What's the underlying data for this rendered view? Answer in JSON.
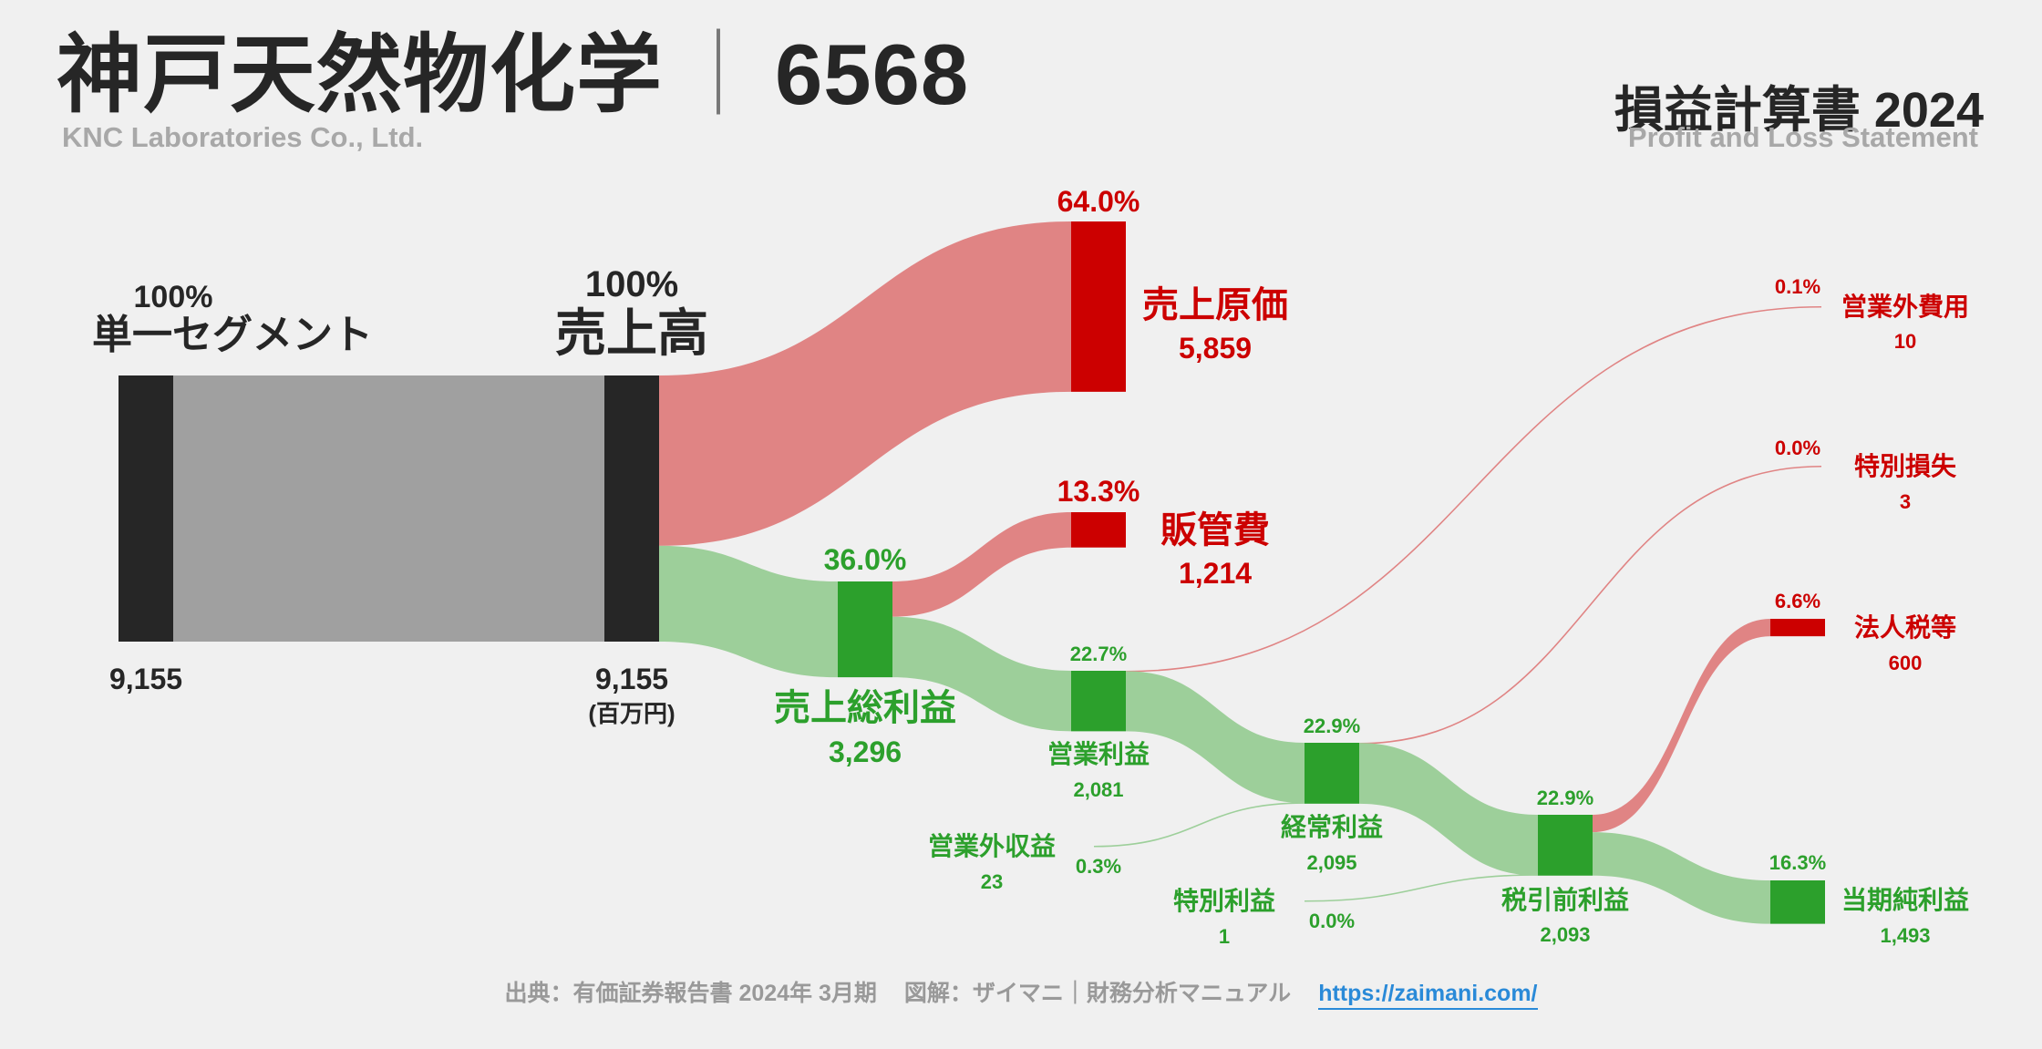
{
  "header": {
    "company": "神戸天然物化学",
    "separator": "｜",
    "code": "6568",
    "company_en": "KNC Laboratories Co., Ltd.",
    "statement": "損益計算書 2024",
    "statement_en": "Profit and Loss Statement"
  },
  "footer": {
    "source": "出典：有価証券報告書 2024年 3月期",
    "credit": "図解：ザイマニ｜財務分析マニュアル",
    "url": "https://zaimani.com/"
  },
  "colors": {
    "dark": "#262626",
    "gray_band": "#a0a0a0",
    "red": "#cc0000",
    "red_band": "#e08484",
    "green": "#2ca02c",
    "green_band": "#9dcf9a",
    "background": "#f0f0f0"
  },
  "chart_data": {
    "type": "sankey",
    "unit": "(百万円)",
    "nodes": [
      {
        "id": "segment",
        "label": "単一セグメント",
        "value": 9155,
        "value_text": "9,155",
        "pct": "100%",
        "kind": "dark"
      },
      {
        "id": "revenue",
        "label": "売上高",
        "value": 9155,
        "value_text": "9,155",
        "pct": "100%",
        "kind": "dark"
      },
      {
        "id": "cogs",
        "label": "売上原価",
        "value": 5859,
        "value_text": "5,859",
        "pct": "64.0%",
        "kind": "cost"
      },
      {
        "id": "gross",
        "label": "売上総利益",
        "value": 3296,
        "value_text": "3,296",
        "pct": "36.0%",
        "kind": "profit"
      },
      {
        "id": "sga",
        "label": "販管費",
        "value": 1214,
        "value_text": "1,214",
        "pct": "13.3%",
        "kind": "cost"
      },
      {
        "id": "op",
        "label": "営業利益",
        "value": 2081,
        "value_text": "2,081",
        "pct": "22.7%",
        "kind": "profit"
      },
      {
        "id": "nonop_inc",
        "label": "営業外収益",
        "value": 23,
        "value_text": "23",
        "pct": "0.3%",
        "kind": "profit"
      },
      {
        "id": "nonop_exp",
        "label": "営業外費用",
        "value": 10,
        "value_text": "10",
        "pct": "0.1%",
        "kind": "cost"
      },
      {
        "id": "ordinary",
        "label": "経常利益",
        "value": 2095,
        "value_text": "2,095",
        "pct": "22.9%",
        "kind": "profit"
      },
      {
        "id": "ext_gain",
        "label": "特別利益",
        "value": 1,
        "value_text": "1",
        "pct": "0.0%",
        "kind": "profit"
      },
      {
        "id": "ext_loss",
        "label": "特別損失",
        "value": 3,
        "value_text": "3",
        "pct": "0.0%",
        "kind": "cost"
      },
      {
        "id": "pretax",
        "label": "税引前利益",
        "value": 2093,
        "value_text": "2,093",
        "pct": "22.9%",
        "kind": "profit"
      },
      {
        "id": "tax",
        "label": "法人税等",
        "value": 600,
        "value_text": "600",
        "pct": "6.6%",
        "kind": "cost"
      },
      {
        "id": "net",
        "label": "当期純利益",
        "value": 1493,
        "value_text": "1,493",
        "pct": "16.3%",
        "kind": "profit"
      }
    ],
    "links": [
      {
        "source": "segment",
        "target": "revenue",
        "value": 9155
      },
      {
        "source": "revenue",
        "target": "cogs",
        "value": 5859
      },
      {
        "source": "revenue",
        "target": "gross",
        "value": 3296
      },
      {
        "source": "gross",
        "target": "sga",
        "value": 1214
      },
      {
        "source": "gross",
        "target": "op",
        "value": 2081
      },
      {
        "source": "op",
        "target": "nonop_exp",
        "value": 10
      },
      {
        "source": "op",
        "target": "ordinary",
        "value": 2071
      },
      {
        "source": "nonop_inc",
        "target": "ordinary",
        "value": 23
      },
      {
        "source": "ordinary",
        "target": "ext_loss",
        "value": 3
      },
      {
        "source": "ordinary",
        "target": "pretax",
        "value": 2092
      },
      {
        "source": "ext_gain",
        "target": "pretax",
        "value": 1
      },
      {
        "source": "pretax",
        "target": "tax",
        "value": 600
      },
      {
        "source": "pretax",
        "target": "net",
        "value": 1493
      }
    ]
  }
}
